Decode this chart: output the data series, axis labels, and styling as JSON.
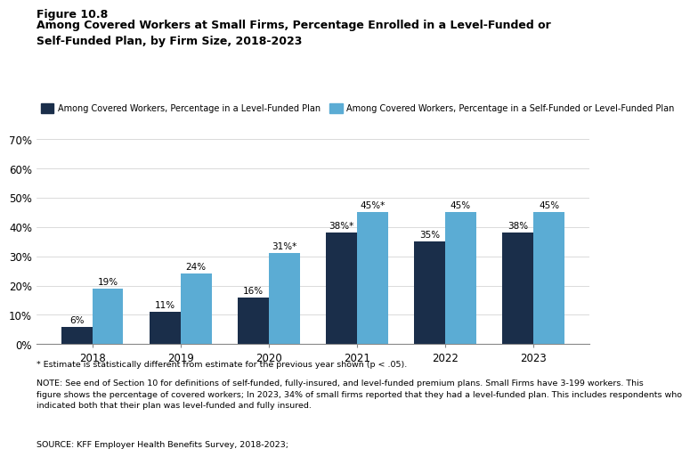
{
  "title_line1": "Figure 10.8",
  "title_line2": "Among Covered Workers at Small Firms, Percentage Enrolled in a Level-Funded or\nSelf-Funded Plan, by Firm Size, 2018-2023",
  "years": [
    "2018",
    "2019",
    "2020",
    "2021",
    "2022",
    "2023"
  ],
  "dark_values": [
    6,
    11,
    16,
    38,
    35,
    38
  ],
  "light_values": [
    19,
    24,
    31,
    45,
    45,
    45
  ],
  "dark_labels": [
    "6%",
    "11%",
    "16%",
    "38%*",
    "35%",
    "38%"
  ],
  "light_labels": [
    "19%",
    "24%",
    "31%*",
    "45%*",
    "45%",
    "45%"
  ],
  "dark_color": "#1a2e4a",
  "light_color": "#5bacd4",
  "ylim": [
    0,
    75
  ],
  "yticks": [
    0,
    10,
    20,
    30,
    40,
    50,
    60,
    70
  ],
  "ytick_labels": [
    "0%",
    "10%",
    "20%",
    "30%",
    "40%",
    "50%",
    "60%",
    "70%"
  ],
  "legend_dark_label": "Among Covered Workers, Percentage in a Level-Funded Plan",
  "legend_light_label": "Among Covered Workers, Percentage in a Self-Funded or Level-Funded Plan",
  "footnote1": "* Estimate is statistically different from estimate for the previous year shown (p < .05).",
  "footnote2": "NOTE: See end of Section 10 for definitions of self-funded, fully-insured, and level-funded premium plans. Small Firms have 3-199 workers. This\nfigure shows the percentage of covered workers; In 2023, 34% of small firms reported that they had a level-funded plan. This includes respondents who\nindicated both that their plan was level-funded and fully insured.",
  "footnote3": "SOURCE: KFF Employer Health Benefits Survey, 2018-2023;",
  "bar_width": 0.35,
  "background_color": "#ffffff"
}
